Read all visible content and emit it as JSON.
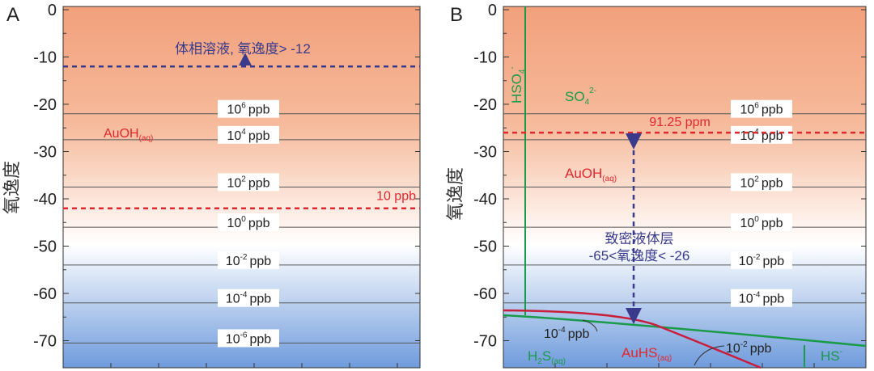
{
  "chart_data": [
    {
      "type": "line",
      "panel_label": "A",
      "ylabel": "氧逸度",
      "ylim": [
        -75,
        0
      ],
      "yticks": [
        0,
        -10,
        -20,
        -30,
        -40,
        -50,
        -60,
        -70
      ],
      "ytick_labels": [
        "0",
        "-10",
        "-20",
        "-30",
        "-40",
        "-50",
        "-60",
        "-70"
      ],
      "background_gradient": {
        "top": "#f2a07c",
        "middle": "#ffffff",
        "bottom": "#6f9bdc"
      },
      "contours": [
        {
          "y": -22,
          "label": "10^6 ppb",
          "mant": "10",
          "exp": "6",
          "unit": "ppb"
        },
        {
          "y": -27.5,
          "label": "10^4 ppb",
          "mant": "10",
          "exp": "4",
          "unit": "ppb"
        },
        {
          "y": -37.5,
          "label": "10^2 ppb",
          "mant": "10",
          "exp": "2",
          "unit": "ppb"
        },
        {
          "y": -46,
          "label": "10^0 ppb",
          "mant": "10",
          "exp": "0",
          "unit": "ppb"
        },
        {
          "y": -54,
          "label": "10^-2 ppb",
          "mant": "10",
          "exp": "-2",
          "unit": "ppb"
        },
        {
          "y": -62,
          "label": "10^-4 ppb",
          "mant": "10",
          "exp": "-4",
          "unit": "ppb"
        },
        {
          "y": -70.5,
          "label": "10^-6 ppb",
          "mant": "10",
          "exp": "-6",
          "unit": "ppb"
        }
      ],
      "lines": [
        {
          "name": "bulk-solution",
          "y": -12,
          "color": "#3a3a8c",
          "style": "dashed",
          "label": "体相溶液, 氧逸度> -12"
        },
        {
          "name": "au-10ppb",
          "y": -42,
          "color": "#e0282e",
          "style": "dashed",
          "label": "10 ppb"
        }
      ],
      "species": [
        {
          "name": "AuOH",
          "sub": "(aq)",
          "color": "#e0282e"
        }
      ]
    },
    {
      "type": "line",
      "panel_label": "B",
      "ylabel": "氧逸度",
      "ylim": [
        -75,
        0
      ],
      "yticks": [
        0,
        -10,
        -20,
        -30,
        -40,
        -50,
        -60,
        -70
      ],
      "ytick_labels": [
        "0",
        "-10",
        "-20",
        "-30",
        "-40",
        "-50",
        "-60",
        "-70"
      ],
      "background_gradient": {
        "top": "#f2a07c",
        "middle": "#ffffff",
        "bottom": "#6f9bdc"
      },
      "contours": [
        {
          "y": -22,
          "label": "10^6 ppb",
          "mant": "10",
          "exp": "6",
          "unit": "ppb"
        },
        {
          "y": -27.5,
          "label": "10^4 ppb",
          "mant": "10",
          "exp": "4",
          "unit": "ppb"
        },
        {
          "y": -37.5,
          "label": "10^2 ppb",
          "mant": "10",
          "exp": "2",
          "unit": "ppb"
        },
        {
          "y": -46,
          "label": "10^0 ppb",
          "mant": "10",
          "exp": "0",
          "unit": "ppb"
        },
        {
          "y": -54,
          "label": "10^-2 ppb",
          "mant": "10",
          "exp": "-2",
          "unit": "ppb"
        },
        {
          "y": -62,
          "label": "10^-4 ppb",
          "mant": "10",
          "exp": "-4",
          "unit": "ppb"
        }
      ],
      "lines": [
        {
          "name": "au-91ppm",
          "y": -26,
          "color": "#e0282e",
          "style": "dashed",
          "label": "91.25 ppm"
        }
      ],
      "dense_liquid_layer": {
        "label_line1": "致密液体层",
        "label_line2": "-65<氧逸度< -26",
        "y_top": -26,
        "y_bottom": -65,
        "color": "#3a3a8c"
      },
      "species": [
        {
          "name": "HSO",
          "sub": "4",
          "sup": "-",
          "color": "#1a9a4a",
          "vertical": true
        },
        {
          "name": "SO",
          "sub": "4",
          "sup": "2-",
          "color": "#1a9a4a"
        },
        {
          "name": "AuOH",
          "sub": "(aq)",
          "color": "#e0282e"
        },
        {
          "name": "H",
          "sub": "2",
          "name2": "S",
          "sub2": "(aq)",
          "color": "#1a9a4a"
        },
        {
          "name": "AuHS",
          "sub": "(aq)",
          "color": "#e0282e"
        },
        {
          "name": "HS",
          "sup": "-",
          "color": "#1a9a4a"
        }
      ],
      "bottom_labels": [
        {
          "mant": "10",
          "exp": "-4",
          "unit": "ppb"
        },
        {
          "mant": "10",
          "exp": "-2",
          "unit": "ppb"
        }
      ]
    }
  ]
}
